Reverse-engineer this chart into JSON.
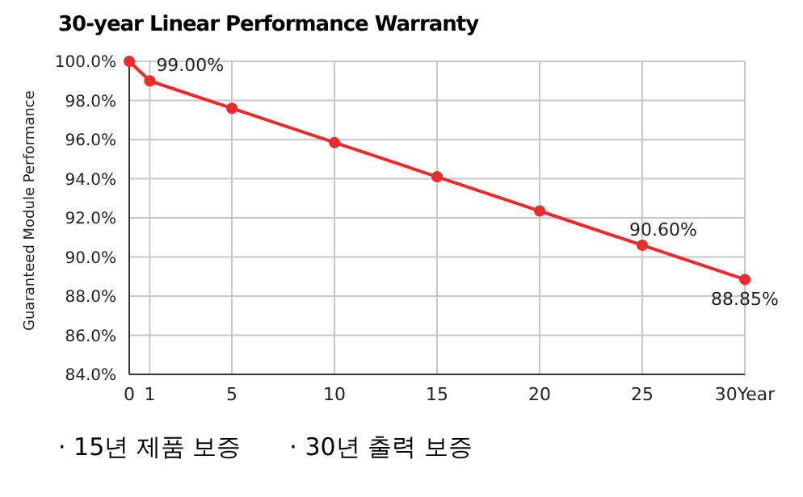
{
  "chart_data": {
    "type": "line",
    "title": "30-year Linear Performance Warranty",
    "ylabel": "Guaranteed Module Performance",
    "x": [
      0,
      1,
      5,
      10,
      15,
      20,
      25,
      30
    ],
    "series": [
      {
        "color": "#ee2a2a",
        "values": [
          100,
          99,
          97.6,
          95.85,
          94.1,
          92.35,
          90.6,
          88.85
        ],
        "value_labels": [
          null,
          "99.00%",
          null,
          null,
          null,
          null,
          "90.60%",
          "88.85%"
        ]
      }
    ],
    "xlim": [
      0,
      30
    ],
    "xticks": [
      0,
      1,
      5,
      10,
      15,
      20,
      25,
      {
        "value": 30,
        "label": "30Year"
      }
    ],
    "ylim": [
      84,
      100
    ],
    "yticks": [
      {
        "value": 84,
        "label": "84.0%"
      },
      {
        "value": 86,
        "label": "86.0%"
      },
      {
        "value": 88,
        "label": "88.0%"
      },
      {
        "value": 90,
        "label": "90.0%"
      },
      {
        "value": 92,
        "label": "92.0%"
      },
      {
        "value": 94,
        "label": "94.0%"
      },
      {
        "value": 96,
        "label": "96.0%"
      },
      {
        "value": 98,
        "label": "98.0%"
      },
      {
        "value": 100,
        "label": "100.0%"
      }
    ],
    "grid": true,
    "marker": "circle",
    "line_style": "solid",
    "legend": false,
    "annotations": [
      "· 15년 제품 보증",
      "· 30년 출력 보증"
    ]
  }
}
